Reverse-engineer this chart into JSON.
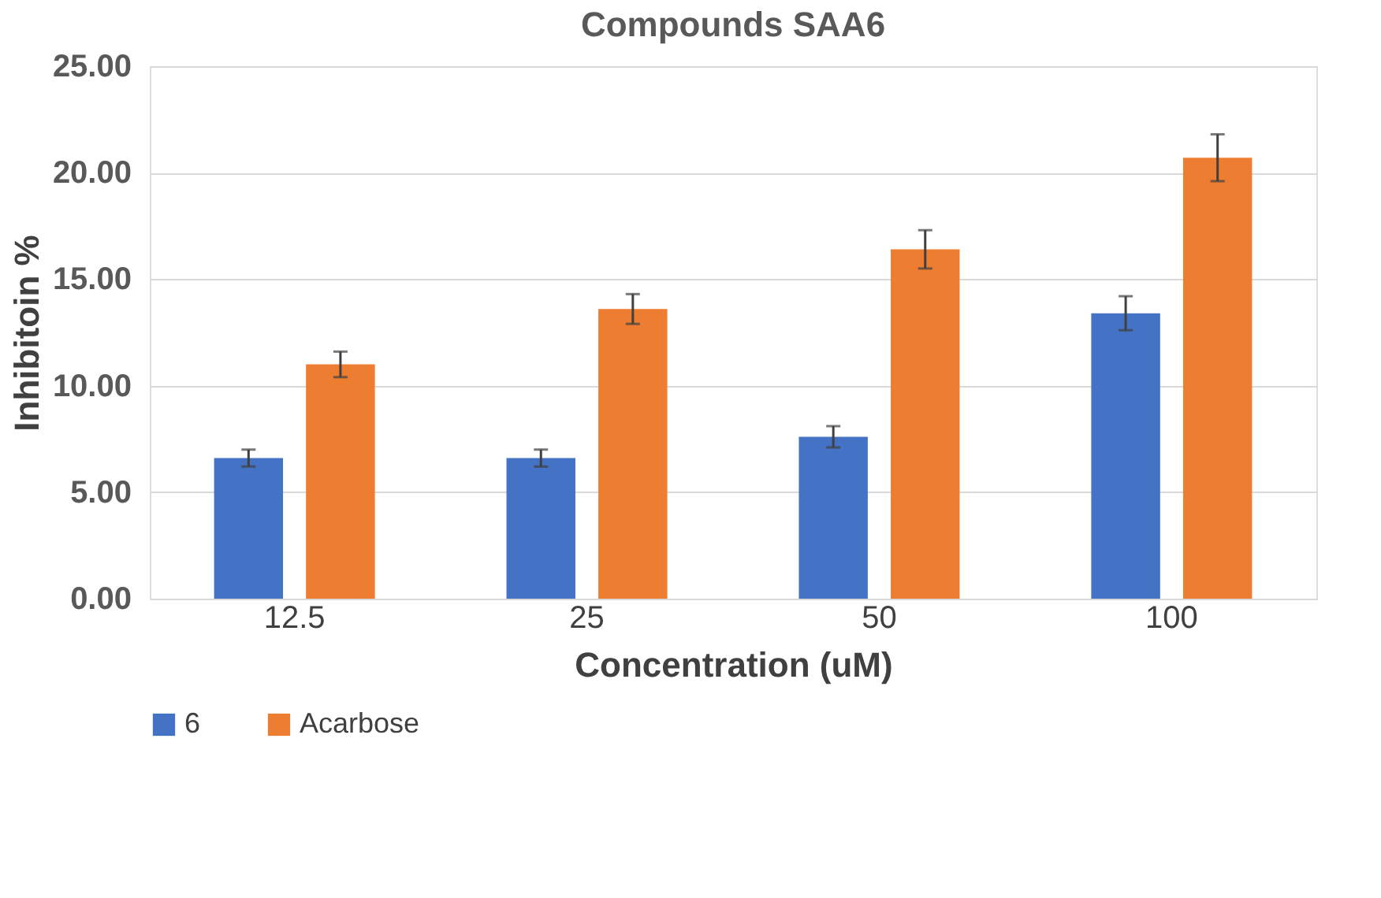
{
  "chart_data": {
    "type": "bar",
    "title": "Compounds SAA6",
    "xlabel": "Concentration (uM)",
    "ylabel": "Inhibitoin %",
    "categories": [
      "12.5",
      "25",
      "50",
      "100"
    ],
    "series": [
      {
        "name": "6",
        "color": "#4472c4",
        "values": [
          6.6,
          6.6,
          7.6,
          13.4
        ],
        "errors": [
          0.4,
          0.4,
          0.5,
          0.8
        ]
      },
      {
        "name": "Acarbose",
        "color": "#ed7d31",
        "values": [
          11.0,
          13.6,
          16.4,
          20.7
        ],
        "errors": [
          0.6,
          0.7,
          0.9,
          1.1
        ]
      }
    ],
    "ylim": [
      0,
      25
    ],
    "yticks": [
      {
        "value": 0,
        "label": "0.00"
      },
      {
        "value": 5,
        "label": "5.00"
      },
      {
        "value": 10,
        "label": "10.00"
      },
      {
        "value": 15,
        "label": "15.00"
      },
      {
        "value": 20,
        "label": "20.00"
      },
      {
        "value": 25,
        "label": "25.00"
      }
    ],
    "grid": "y",
    "legend": "bottom"
  }
}
